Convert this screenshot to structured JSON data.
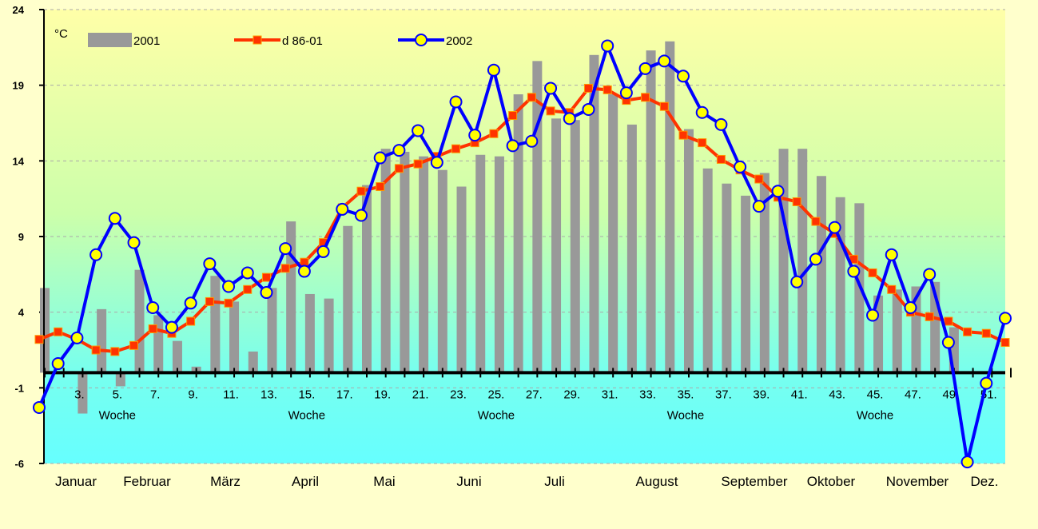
{
  "chart_data": {
    "type": "combo",
    "y_unit": "°C",
    "x_axis_label": "Woche",
    "categories": [
      null,
      null,
      "3.",
      null,
      "5.",
      null,
      "7.",
      null,
      "9.",
      null,
      "11.",
      null,
      "13.",
      null,
      "15.",
      null,
      "17.",
      null,
      "19.",
      null,
      "21.",
      null,
      "23.",
      null,
      "25.",
      null,
      "27.",
      null,
      "29.",
      null,
      "31.",
      null,
      "33.",
      null,
      "35.",
      null,
      "37.",
      null,
      "39.",
      null,
      "41.",
      null,
      "43.",
      null,
      "45.",
      null,
      "47.",
      null,
      "49.",
      null,
      "51.",
      null
    ],
    "months": [
      "Januar",
      "Februar",
      "März",
      "April",
      "Mai",
      "Juni",
      "Juli",
      "August",
      "September",
      "Oktober",
      "November",
      "Dez."
    ],
    "series": [
      {
        "name": "2001",
        "kind": "bar",
        "color": "#999999",
        "values": [
          5.6,
          null,
          -2.7,
          4.2,
          -0.9,
          6.8,
          3.8,
          2.1,
          0.4,
          6.4,
          4.7,
          1.4,
          5.6,
          10.0,
          5.2,
          4.9,
          9.7,
          12.4,
          14.8,
          14.6,
          14.3,
          13.4,
          12.3,
          14.4,
          14.3,
          18.4,
          20.6,
          16.8,
          16.7,
          21.0,
          18.4,
          16.4,
          21.3,
          21.9,
          16.1,
          13.5,
          12.5,
          11.7,
          13.2,
          14.8,
          14.8,
          13.0,
          11.6,
          11.2,
          5.1,
          5.5,
          5.7,
          6.0,
          3.0,
          null,
          null,
          null
        ]
      },
      {
        "name": "d 86-01",
        "kind": "line",
        "color": "#ff3300",
        "marker": "square",
        "marker_color": "#ff3300",
        "values": [
          2.2,
          2.7,
          2.2,
          1.5,
          1.4,
          1.8,
          2.9,
          2.6,
          3.4,
          4.7,
          4.6,
          5.5,
          6.3,
          6.9,
          7.3,
          8.6,
          10.9,
          12.0,
          12.3,
          13.5,
          13.8,
          14.3,
          14.8,
          15.2,
          15.8,
          17.0,
          18.2,
          17.3,
          17.2,
          18.8,
          18.7,
          18.0,
          18.2,
          17.6,
          15.7,
          15.2,
          14.1,
          13.4,
          12.8,
          11.6,
          11.3,
          10.0,
          9.2,
          7.5,
          6.6,
          5.5,
          4.0,
          3.7,
          3.4,
          2.7,
          2.6,
          2.0
        ]
      },
      {
        "name": "2002",
        "kind": "line",
        "color": "#0000ff",
        "marker": "circle",
        "marker_color": "#ffff00",
        "values": [
          -2.3,
          0.6,
          2.3,
          7.8,
          10.2,
          8.6,
          4.3,
          3.0,
          4.6,
          7.2,
          5.7,
          6.6,
          5.3,
          8.2,
          6.7,
          8.0,
          10.8,
          10.4,
          14.2,
          14.7,
          16.0,
          13.9,
          17.9,
          15.7,
          20.0,
          15.0,
          15.3,
          18.8,
          16.8,
          17.4,
          21.6,
          18.5,
          20.1,
          20.6,
          19.6,
          17.2,
          16.4,
          13.6,
          11.0,
          12.0,
          6.0,
          7.5,
          9.6,
          6.7,
          3.8,
          7.8,
          4.3,
          6.5,
          2.0,
          -5.9,
          -0.7,
          3.6
        ]
      }
    ],
    "ylim": [
      -6,
      24
    ],
    "yticks": [
      -6,
      -1,
      4,
      9,
      14,
      19,
      24
    ],
    "grid": true
  }
}
